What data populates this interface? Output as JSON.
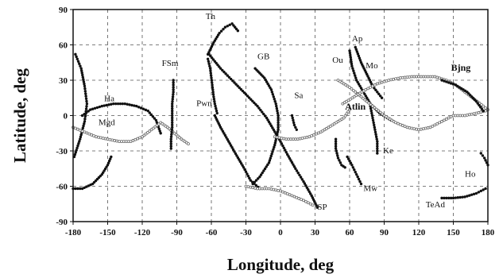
{
  "chart_data": {
    "type": "scatter",
    "title": "",
    "xlabel": "Longitude, deg",
    "ylabel": "Latitude, deg",
    "xlim": [
      -180,
      180
    ],
    "ylim": [
      -90,
      90
    ],
    "xticks": [
      -180,
      -150,
      -120,
      -90,
      -60,
      -30,
      0,
      30,
      60,
      90,
      120,
      150,
      180
    ],
    "yticks": [
      -90,
      -60,
      -30,
      0,
      30,
      60,
      90
    ],
    "xtick_labels": [
      "-180",
      "-150",
      "-120",
      "-90",
      "-60",
      "-30",
      "0",
      "30",
      "60",
      "90",
      "120",
      "150",
      "180"
    ],
    "ytick_labels": [
      "-90",
      "-60",
      "-30",
      "0",
      "30",
      "60",
      "90"
    ],
    "grid": true,
    "station_labels": [
      {
        "text": "Th",
        "x": -65,
        "y": 82,
        "bold": false
      },
      {
        "text": "FSm",
        "x": -103,
        "y": 42,
        "bold": false
      },
      {
        "text": "GB",
        "x": -20,
        "y": 48,
        "bold": false
      },
      {
        "text": "Ap",
        "x": 62,
        "y": 63,
        "bold": false
      },
      {
        "text": "Ou",
        "x": 45,
        "y": 45,
        "bold": false
      },
      {
        "text": "Mo",
        "x": 74,
        "y": 40,
        "bold": false
      },
      {
        "text": "Bjng",
        "x": 148,
        "y": 38,
        "bold": true
      },
      {
        "text": "Ha",
        "x": -153,
        "y": 12,
        "bold": false
      },
      {
        "text": "Sa",
        "x": 12,
        "y": 15,
        "bold": false
      },
      {
        "text": "Pwn",
        "x": -73,
        "y": 8,
        "bold": false
      },
      {
        "text": "Atlin",
        "x": 56,
        "y": 5,
        "bold": true
      },
      {
        "text": "Mgd",
        "x": -158,
        "y": -8,
        "bold": false
      },
      {
        "text": "Ke",
        "x": 89,
        "y": -32,
        "bold": false
      },
      {
        "text": "Mw",
        "x": 72,
        "y": -64,
        "bold": false
      },
      {
        "text": "Ho",
        "x": 160,
        "y": -52,
        "bold": false
      },
      {
        "text": "SP",
        "x": 32,
        "y": -80,
        "bold": false
      },
      {
        "text": "TeAd",
        "x": 126,
        "y": -78,
        "bold": false
      }
    ],
    "series": [
      {
        "style": "filled",
        "points": [
          [
            -178,
            52
          ],
          [
            -173,
            40
          ],
          [
            -170,
            25
          ],
          [
            -168,
            10
          ],
          [
            -170,
            -5
          ],
          [
            -174,
            -20
          ],
          [
            -179,
            -35
          ]
        ]
      },
      {
        "style": "filled",
        "points": [
          [
            -180,
            -62
          ],
          [
            -172,
            -62
          ],
          [
            -163,
            -58
          ],
          [
            -155,
            -50
          ],
          [
            -150,
            -42
          ],
          [
            -147,
            -35
          ]
        ]
      },
      {
        "style": "filled",
        "points": [
          [
            -172,
            0
          ],
          [
            -165,
            5
          ],
          [
            -155,
            8
          ],
          [
            -145,
            10
          ],
          [
            -135,
            10
          ],
          [
            -125,
            8
          ],
          [
            -115,
            4
          ],
          [
            -108,
            -4
          ],
          [
            -104,
            -15
          ]
        ]
      },
      {
        "style": "open",
        "points": [
          [
            -180,
            -10
          ],
          [
            -170,
            -14
          ],
          [
            -160,
            -18
          ],
          [
            -150,
            -20
          ],
          [
            -140,
            -22
          ],
          [
            -130,
            -22
          ],
          [
            -120,
            -18
          ],
          [
            -112,
            -12
          ],
          [
            -104,
            -6
          ],
          [
            -98,
            -10
          ],
          [
            -92,
            -15
          ],
          [
            -86,
            -20
          ],
          [
            -80,
            -24
          ]
        ]
      },
      {
        "style": "filled",
        "points": [
          [
            -93,
            30
          ],
          [
            -93,
            20
          ],
          [
            -94,
            10
          ],
          [
            -94,
            0
          ],
          [
            -94,
            -10
          ],
          [
            -95,
            -20
          ],
          [
            -95,
            -28
          ]
        ]
      },
      {
        "style": "filled",
        "points": [
          [
            -63,
            48
          ],
          [
            -61,
            40
          ],
          [
            -60,
            32
          ],
          [
            -59,
            24
          ],
          [
            -58,
            16
          ],
          [
            -57,
            10
          ],
          [
            -55,
            2
          ]
        ]
      },
      {
        "style": "filled",
        "points": [
          [
            -63,
            52
          ],
          [
            -58,
            62
          ],
          [
            -53,
            70
          ],
          [
            -48,
            75
          ],
          [
            -42,
            78
          ],
          [
            -37,
            72
          ]
        ]
      },
      {
        "style": "filled",
        "points": [
          [
            -57,
            0
          ],
          [
            -52,
            -10
          ],
          [
            -45,
            -22
          ],
          [
            -38,
            -34
          ],
          [
            -32,
            -44
          ],
          [
            -26,
            -55
          ],
          [
            -18,
            -62
          ]
        ]
      },
      {
        "style": "filled",
        "points": [
          [
            -62,
            52
          ],
          [
            -52,
            40
          ],
          [
            -40,
            28
          ],
          [
            -30,
            18
          ],
          [
            -20,
            8
          ],
          [
            -12,
            -2
          ],
          [
            -6,
            -12
          ],
          [
            0,
            -22
          ],
          [
            6,
            -33
          ],
          [
            13,
            -45
          ],
          [
            20,
            -56
          ],
          [
            27,
            -68
          ],
          [
            32,
            -78
          ]
        ]
      },
      {
        "style": "filled",
        "points": [
          [
            -22,
            40
          ],
          [
            -14,
            32
          ],
          [
            -8,
            22
          ],
          [
            -4,
            10
          ],
          [
            -2,
            0
          ],
          [
            -2,
            -12
          ],
          [
            -5,
            -25
          ],
          [
            -10,
            -40
          ],
          [
            -18,
            -52
          ],
          [
            -24,
            -58
          ]
        ]
      },
      {
        "style": "open",
        "points": [
          [
            -30,
            -60
          ],
          [
            -20,
            -62
          ],
          [
            -10,
            -62
          ],
          [
            0,
            -64
          ],
          [
            10,
            -68
          ],
          [
            20,
            -72
          ],
          [
            28,
            -76
          ]
        ]
      },
      {
        "style": "open",
        "points": [
          [
            -5,
            -18
          ],
          [
            5,
            -20
          ],
          [
            15,
            -20
          ],
          [
            25,
            -18
          ],
          [
            35,
            -14
          ],
          [
            45,
            -8
          ],
          [
            55,
            -2
          ],
          [
            60,
            5
          ]
        ]
      },
      {
        "style": "filled",
        "points": [
          [
            10,
            0
          ],
          [
            11,
            -4
          ],
          [
            12,
            -8
          ],
          [
            14,
            -12
          ]
        ]
      },
      {
        "style": "filled",
        "points": [
          [
            48,
            -20
          ],
          [
            48,
            -28
          ],
          [
            50,
            -36
          ],
          [
            53,
            -42
          ],
          [
            56,
            -44
          ]
        ]
      },
      {
        "style": "filled",
        "points": [
          [
            58,
            -35
          ],
          [
            62,
            -42
          ],
          [
            66,
            -50
          ],
          [
            70,
            -58
          ]
        ]
      },
      {
        "style": "filled",
        "points": [
          [
            60,
            55
          ],
          [
            62,
            42
          ],
          [
            66,
            30
          ],
          [
            72,
            20
          ],
          [
            78,
            10
          ],
          [
            86,
            2
          ],
          [
            96,
            -4
          ]
        ]
      },
      {
        "style": "filled",
        "points": [
          [
            65,
            58
          ],
          [
            70,
            45
          ],
          [
            75,
            35
          ],
          [
            80,
            25
          ],
          [
            88,
            15
          ]
        ]
      },
      {
        "style": "filled",
        "points": [
          [
            78,
            8
          ],
          [
            80,
            -2
          ],
          [
            82,
            -12
          ],
          [
            84,
            -22
          ],
          [
            84,
            -32
          ]
        ]
      },
      {
        "style": "open",
        "points": [
          [
            50,
            30
          ],
          [
            60,
            24
          ],
          [
            70,
            16
          ],
          [
            80,
            8
          ],
          [
            90,
            0
          ],
          [
            100,
            -6
          ],
          [
            110,
            -10
          ],
          [
            120,
            -12
          ],
          [
            130,
            -10
          ],
          [
            140,
            -5
          ],
          [
            150,
            0
          ],
          [
            160,
            0
          ],
          [
            170,
            2
          ],
          [
            178,
            4
          ]
        ]
      },
      {
        "style": "open",
        "points": [
          [
            54,
            10
          ],
          [
            64,
            16
          ],
          [
            74,
            22
          ],
          [
            84,
            27
          ],
          [
            94,
            30
          ],
          [
            104,
            32
          ],
          [
            114,
            33
          ],
          [
            124,
            33
          ],
          [
            134,
            33
          ],
          [
            144,
            30
          ],
          [
            152,
            26
          ],
          [
            160,
            20
          ],
          [
            168,
            14
          ],
          [
            176,
            8
          ],
          [
            180,
            5
          ]
        ]
      },
      {
        "style": "filled",
        "points": [
          [
            140,
            30
          ],
          [
            152,
            26
          ],
          [
            162,
            20
          ],
          [
            170,
            12
          ],
          [
            176,
            4
          ]
        ]
      },
      {
        "style": "filled",
        "points": [
          [
            174,
            -32
          ],
          [
            177,
            -36
          ],
          [
            180,
            -42
          ]
        ]
      },
      {
        "style": "filled",
        "points": [
          [
            140,
            -70
          ],
          [
            150,
            -70
          ],
          [
            160,
            -69
          ],
          [
            170,
            -66
          ],
          [
            178,
            -62
          ]
        ]
      }
    ]
  }
}
